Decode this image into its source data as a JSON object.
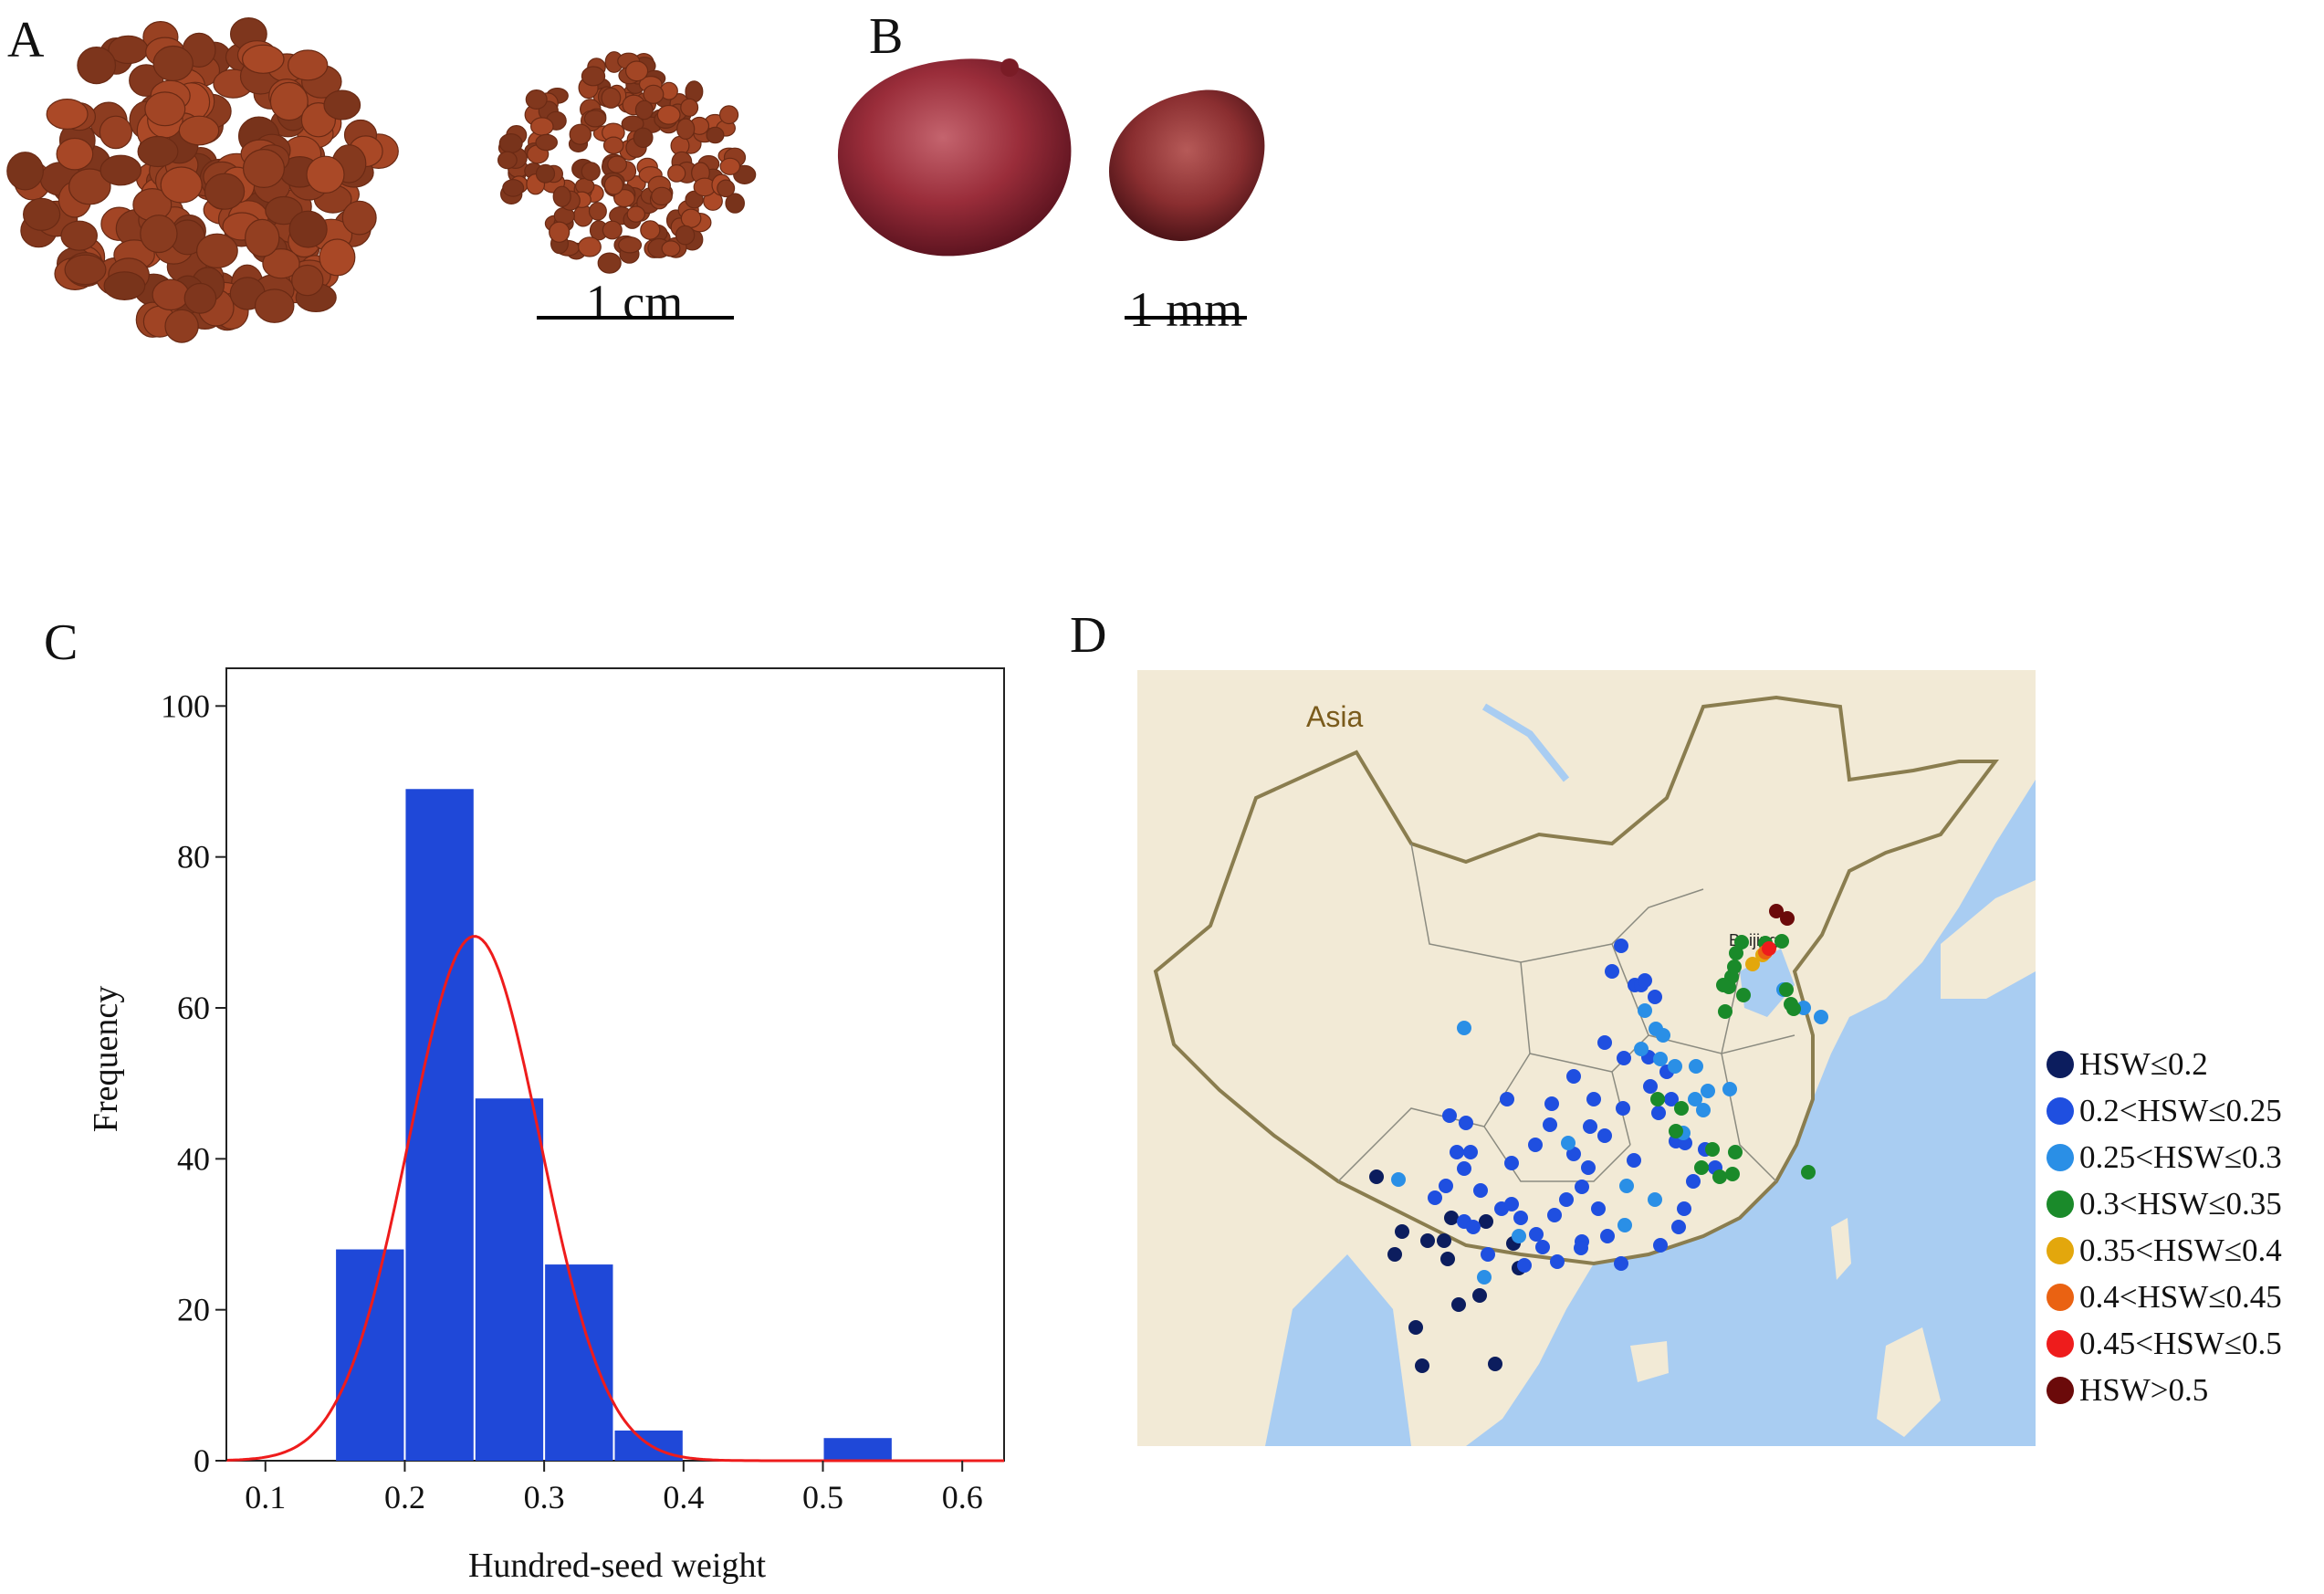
{
  "panels": {
    "a": {
      "letter": "A",
      "scale_label": "1 cm"
    },
    "b": {
      "letter": "B",
      "scale_label": "1 mm"
    },
    "c": {
      "letter": "C"
    },
    "d": {
      "letter": "D",
      "region_label": "Asia",
      "city_label": "Beijing"
    }
  },
  "colors": {
    "bar": "#1f48d8",
    "curve": "#ee1c1c",
    "seed": "#9a3f22",
    "seed_large": "#8e2f33",
    "land": "#f2ead6",
    "water": "#a9cdf2",
    "border": "#8a7d4f"
  },
  "chart_data": {
    "type": "bar",
    "title": "",
    "xlabel": "Hundred-seed weight",
    "ylabel": "Frequency",
    "bin_edges": [
      0.15,
      0.2,
      0.25,
      0.3,
      0.35,
      0.4,
      0.45,
      0.5,
      0.55
    ],
    "values": [
      28,
      89,
      48,
      26,
      4,
      0,
      0,
      3
    ],
    "xlim": [
      0.072,
      0.63
    ],
    "ylim": [
      0,
      105
    ],
    "x_ticks": [
      "0.1",
      "0.2",
      "0.3",
      "0.4",
      "0.5",
      "0.6"
    ],
    "y_ticks": [
      "0",
      "20",
      "40",
      "60",
      "80",
      "100"
    ],
    "fit_curve": {
      "type": "normal",
      "mean": 0.25,
      "sd": 0.0475,
      "peak": 69.5
    }
  },
  "map": {
    "legend": [
      {
        "label": "HSW≤0.2",
        "color": "#0c1d5e"
      },
      {
        "label": "0.2<HSW≤0.25",
        "color": "#1f4fe0"
      },
      {
        "label": "0.25<HSW≤0.3",
        "color": "#2a8fe6"
      },
      {
        "label": "0.3<HSW≤0.35",
        "color": "#1a8a2a"
      },
      {
        "label": "0.35<HSW≤0.4",
        "color": "#e3a70c"
      },
      {
        "label": "0.4<HSW≤0.45",
        "color": "#ea6212"
      },
      {
        "label": "0.45<HSW≤0.5",
        "color": "#ee1c1c"
      },
      {
        "label": "HSW>0.5",
        "color": "#6b0a0a"
      }
    ]
  }
}
